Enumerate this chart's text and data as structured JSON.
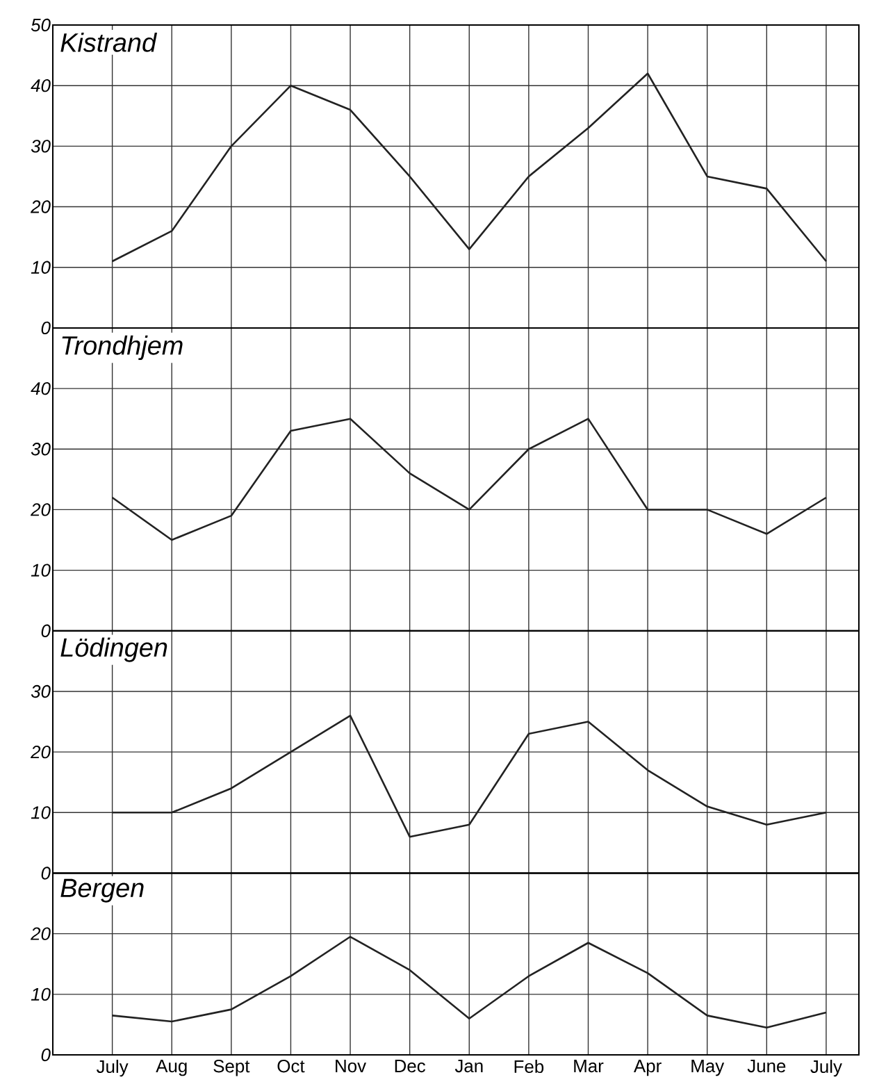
{
  "chart_data": [
    {
      "type": "line",
      "title": "Kistrand",
      "categories": [
        null,
        null,
        null,
        null,
        null,
        null,
        null,
        null,
        null,
        null,
        null,
        null,
        null
      ],
      "series": [
        {
          "color": "#222222",
          "values": [
            11,
            16,
            30,
            40,
            36,
            25,
            13,
            25,
            33,
            42,
            25,
            23,
            11
          ]
        }
      ],
      "ylim": [
        0,
        50
      ],
      "yticks": [
        0,
        10,
        20,
        30,
        40,
        50
      ],
      "grid": true,
      "tick_labels": "y"
    },
    {
      "type": "line",
      "title": "Trondhjem",
      "categories": [
        null,
        null,
        null,
        null,
        null,
        null,
        null,
        null,
        null,
        null,
        null,
        null,
        null
      ],
      "series": [
        {
          "color": "#222222",
          "values": [
            22,
            15,
            19,
            33,
            35,
            26,
            20,
            30,
            35,
            20,
            20,
            16,
            22
          ]
        }
      ],
      "ylim": [
        0,
        50
      ],
      "yticks": [
        0,
        10,
        20,
        30,
        40,
        {
          "value": 50,
          "label": null
        }
      ],
      "grid": true,
      "tick_labels": "y"
    },
    {
      "type": "line",
      "title": "Lödingen",
      "categories": [
        null,
        null,
        null,
        null,
        null,
        null,
        null,
        null,
        null,
        null,
        null,
        null,
        null
      ],
      "series": [
        {
          "color": "#222222",
          "values": [
            10,
            10,
            14,
            20,
            26,
            6,
            8,
            23,
            25,
            17,
            11,
            8,
            10
          ]
        }
      ],
      "ylim": [
        0,
        40
      ],
      "yticks": [
        0,
        10,
        20,
        30,
        {
          "value": 40,
          "label": null
        }
      ],
      "grid": true,
      "tick_labels": "y"
    },
    {
      "type": "line",
      "title": "Bergen",
      "categories": [
        "July",
        "Aug",
        "Sept",
        "Oct",
        "Nov",
        "Dec",
        "Jan",
        "Feb",
        "Mar",
        "Apr",
        "May",
        "June",
        "July"
      ],
      "series": [
        {
          "color": "#222222",
          "values": [
            6.5,
            5.5,
            7.5,
            13,
            19.5,
            14,
            6,
            13,
            18.5,
            13.5,
            6.5,
            4.5,
            7
          ]
        }
      ],
      "ylim": [
        0,
        30
      ],
      "yticks": [
        0,
        10,
        20,
        {
          "value": 30,
          "label": null
        }
      ],
      "grid": true
    }
  ]
}
